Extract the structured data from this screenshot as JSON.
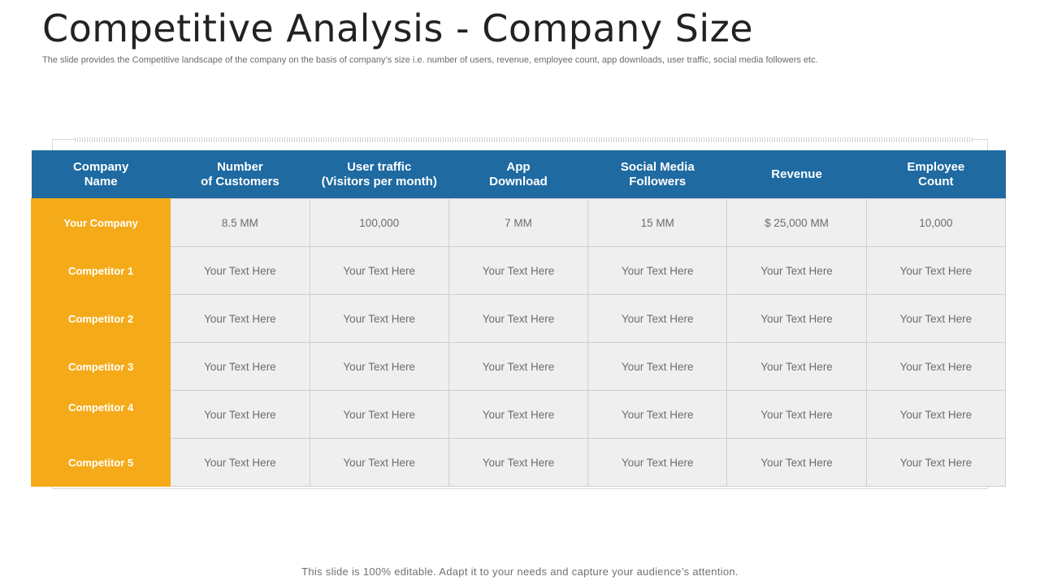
{
  "slide": {
    "title": "Competitive Analysis - Company Size",
    "subtitle": "The slide provides the Competitive landscape of the company  on the basis of company’s  size i.e. number of users, revenue, employee count, app downloads, user traffic, social media followers etc.",
    "footer": "This slide is 100% editable. Adapt it to your needs and capture your audience’s attention."
  },
  "table": {
    "headers": [
      {
        "line1": "Company",
        "line2": "Name"
      },
      {
        "line1": "Number",
        "line2": "of Customers"
      },
      {
        "line1": "User traffic",
        "line2": "(Visitors per month)"
      },
      {
        "line1": "App",
        "line2": "Download"
      },
      {
        "line1": "Social Media",
        "line2": "Followers"
      },
      {
        "line1": "Revenue",
        "line2": ""
      },
      {
        "line1": "Employee",
        "line2": "Count"
      }
    ],
    "rows": [
      {
        "name": "Your Company",
        "cells": [
          "8.5 MM",
          "100,000",
          "7 MM",
          "15 MM",
          "$ 25,000 MM",
          "10,000"
        ]
      },
      {
        "name": "Competitor 1",
        "cells": [
          "Your Text Here",
          "Your Text Here",
          "Your Text Here",
          "Your Text Here",
          "Your Text Here",
          "Your Text Here"
        ]
      },
      {
        "name": "Competitor 2",
        "cells": [
          "Your Text Here",
          "Your Text Here",
          "Your Text Here",
          "Your Text Here",
          "Your Text Here",
          "Your Text Here"
        ]
      },
      {
        "name": "Competitor 3",
        "cells": [
          "Your Text Here",
          "Your Text Here",
          "Your Text Here",
          "Your Text Here",
          "Your Text Here",
          "Your Text Here"
        ]
      },
      {
        "name": "Competitor 4",
        "cells": [
          "Your Text Here",
          "Your Text Here",
          "Your Text Here",
          "Your Text Here",
          "Your Text Here",
          "Your Text Here"
        ]
      },
      {
        "name": "Competitor 5",
        "cells": [
          "Your Text Here",
          "Your Text Here",
          "Your Text Here",
          "Your Text Here",
          "Your Text Here",
          "Your Text Here"
        ]
      }
    ]
  },
  "colors": {
    "header_bg": "#1e6aa1",
    "name_col_bg": "#f5ab19",
    "cell_bg": "#efefef"
  }
}
